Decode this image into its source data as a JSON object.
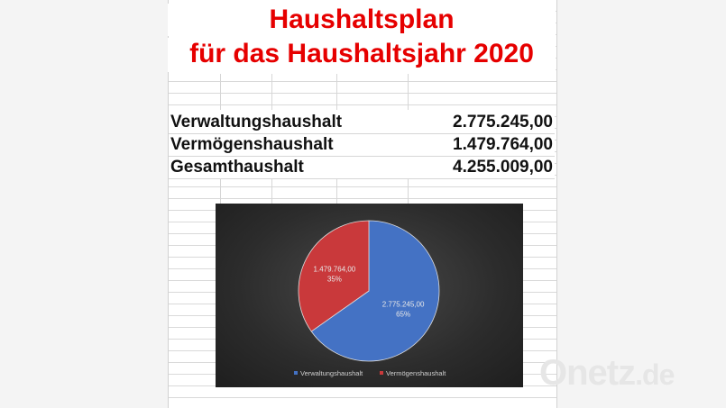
{
  "title_line1": "Haushaltsplan",
  "title_line2": "für das Haushaltsjahr 2020",
  "rows": [
    {
      "label": "Verwaltungshaushalt",
      "value": "2.775.245,00"
    },
    {
      "label": "Vermögenshaushalt",
      "value": "1.479.764,00"
    },
    {
      "label": "Gesamthaushalt",
      "value": "4.255.009,00"
    }
  ],
  "chart_data": {
    "type": "pie",
    "categories": [
      "Verwaltungshaushalt",
      "Vermögenshaushalt"
    ],
    "values": [
      2775245.0,
      1479764.0
    ],
    "data_labels": [
      {
        "value": "2.775.245,00",
        "percent": "65%"
      },
      {
        "value": "1.479.764,00",
        "percent": "35%"
      }
    ],
    "colors": [
      "#4472c4",
      "#c9393b"
    ],
    "legend_position": "bottom",
    "background": "dark"
  },
  "watermark": {
    "brand": "Onetz",
    "tld": ".de"
  }
}
